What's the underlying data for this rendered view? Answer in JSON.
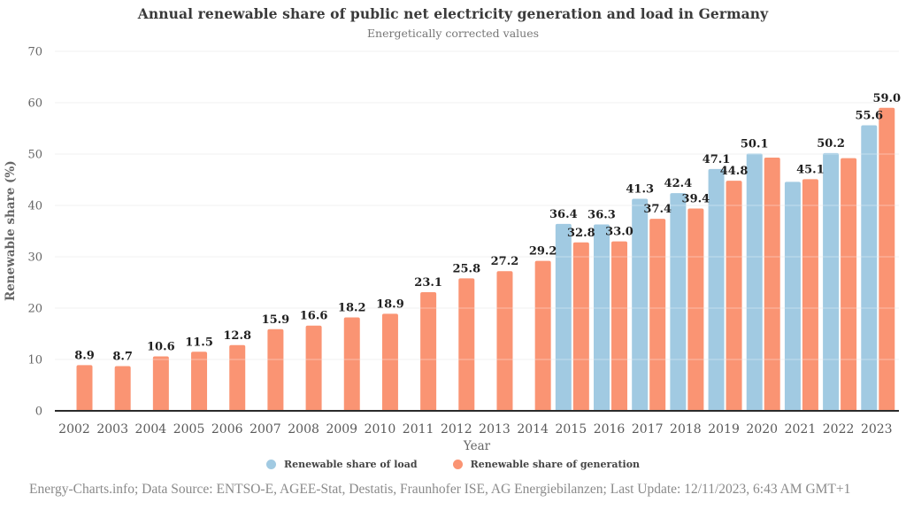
{
  "page": {
    "title": "Annual renewable share of public net electricity generation and load in Germany",
    "subtitle": "Energetically corrected values",
    "footer": "Energy-Charts.info; Data Source: ENTSO-E, AGEE-Stat, Destatis, Fraunhofer ISE, AG Energiebilanzen; Last Update: 12/11/2023, 6:43 AM GMT+1"
  },
  "chart_data": {
    "type": "bar",
    "title": "Annual renewable share of public net electricity generation and load in Germany",
    "subtitle": "Energetically corrected values",
    "xlabel": "Year",
    "ylabel": "Renewable share (%)",
    "ylim": [
      0,
      70
    ],
    "yticks": [
      0,
      10,
      20,
      30,
      40,
      50,
      60,
      70
    ],
    "grid": "horizontal",
    "legend_position": "bottom-center",
    "background_color": "#ffffff",
    "axis_line_color": "#2b2b2b",
    "gridline_color": "#e7e7e7",
    "categories": [
      "2002",
      "2003",
      "2004",
      "2005",
      "2006",
      "2007",
      "2008",
      "2009",
      "2010",
      "2011",
      "2012",
      "2013",
      "2014",
      "2015",
      "2016",
      "2017",
      "2018",
      "2019",
      "2020",
      "2021",
      "2022",
      "2023"
    ],
    "series": [
      {
        "name": "Renewable share of load",
        "key": "load",
        "color": "#A1CAE2",
        "values": [
          null,
          null,
          null,
          null,
          null,
          null,
          null,
          null,
          null,
          null,
          null,
          null,
          null,
          36.4,
          36.3,
          41.3,
          42.4,
          47.1,
          50.1,
          44.6,
          50.2,
          55.6
        ],
        "labels": [
          null,
          null,
          null,
          null,
          null,
          null,
          null,
          null,
          null,
          null,
          null,
          null,
          null,
          "36.4",
          "36.3",
          "41.3",
          "42.4",
          "47.1",
          "50.1",
          null,
          "50.2",
          "55.6"
        ]
      },
      {
        "name": "Renewable share of generation",
        "key": "generation",
        "color": "#FA9473",
        "values": [
          8.9,
          8.7,
          10.6,
          11.5,
          12.8,
          15.9,
          16.6,
          18.2,
          18.9,
          23.1,
          25.8,
          27.2,
          29.2,
          32.8,
          33.0,
          37.4,
          39.4,
          44.8,
          49.3,
          45.1,
          49.2,
          59.0
        ],
        "labels": [
          "8.9",
          "8.7",
          "10.6",
          "11.5",
          "12.8",
          "15.9",
          "16.6",
          "18.2",
          "18.9",
          "23.1",
          "25.8",
          "27.2",
          "29.2",
          "32.8",
          "33.0",
          "37.4",
          "39.4",
          "44.8",
          null,
          "45.1",
          null,
          "59.0"
        ]
      }
    ]
  }
}
